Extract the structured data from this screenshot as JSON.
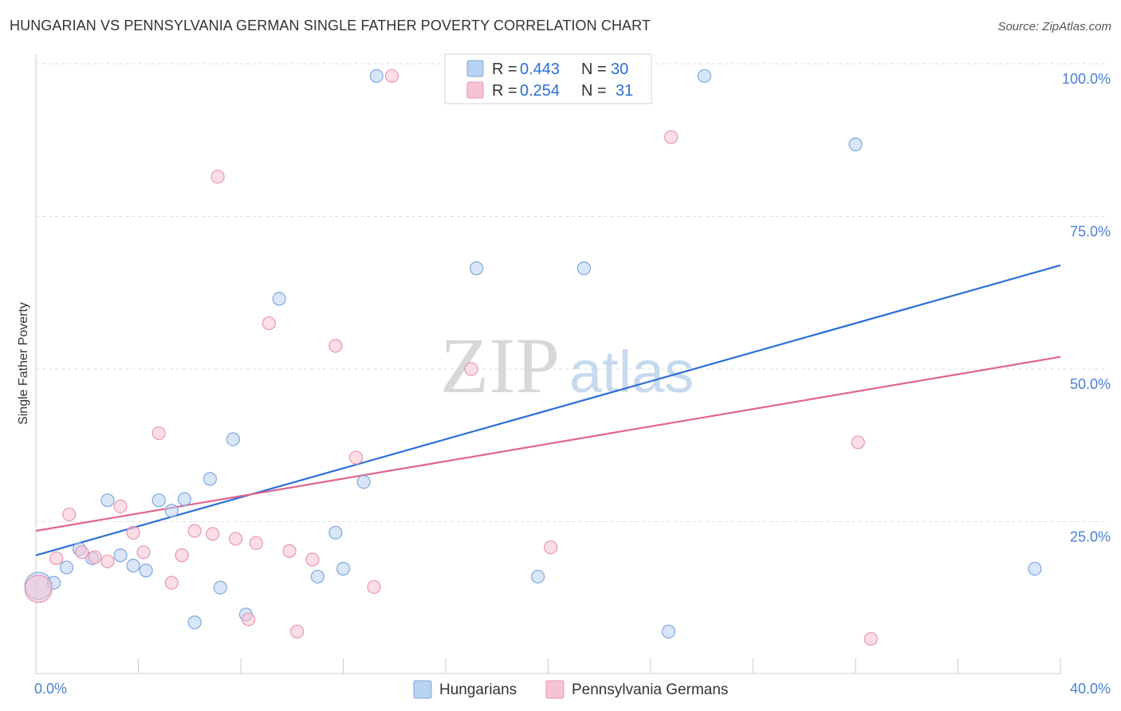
{
  "title": "HUNGARIAN VS PENNSYLVANIA GERMAN SINGLE FATHER POVERTY CORRELATION CHART",
  "source": "Source: ZipAtlas.com",
  "watermark": {
    "part1": "ZIP",
    "part2": "atlas"
  },
  "colors": {
    "blue_fill": "#b8d2f2",
    "blue_stroke": "#7fa8dc",
    "blue_line": "#2a6fd6",
    "pink_fill": "#f7c2d2",
    "pink_stroke": "#e896b0",
    "pink_line": "#e0648e",
    "grid": "#dddddd",
    "tick_label": "#4a7fd4"
  },
  "legend": {
    "r_label": "R =",
    "n_label": "N =",
    "rows": [
      {
        "r": "0.443",
        "n": "30"
      },
      {
        "r": "0.254",
        "n": "31"
      }
    ]
  },
  "chart_data": {
    "type": "scatter",
    "title": "HUNGARIAN VS PENNSYLVANIA GERMAN SINGLE FATHER POVERTY CORRELATION CHART",
    "xlabel": "",
    "ylabel": "Single Father Poverty",
    "xlim": [
      0,
      40
    ],
    "ylim": [
      0,
      100
    ],
    "x_tick_labels": [
      "0.0%",
      "40.0%"
    ],
    "y_tick_values": [
      25,
      50,
      75,
      100
    ],
    "y_tick_labels": [
      "25.0%",
      "50.0%",
      "75.0%",
      "100.0%"
    ],
    "grid": true,
    "legend_position": "top-center",
    "series": [
      {
        "name": "Hungarians",
        "r": 0.443,
        "n": 30,
        "trend": {
          "x": [
            0,
            40
          ],
          "y": [
            19.5,
            67.0
          ]
        },
        "points": [
          {
            "x": 0.1,
            "y": 14.5,
            "big": true
          },
          {
            "x": 0.7,
            "y": 15.0
          },
          {
            "x": 1.2,
            "y": 17.5
          },
          {
            "x": 1.7,
            "y": 20.5
          },
          {
            "x": 2.2,
            "y": 19.0
          },
          {
            "x": 2.8,
            "y": 28.5
          },
          {
            "x": 3.3,
            "y": 19.5
          },
          {
            "x": 3.8,
            "y": 17.8
          },
          {
            "x": 4.3,
            "y": 17.0
          },
          {
            "x": 4.8,
            "y": 28.5
          },
          {
            "x": 5.3,
            "y": 26.8
          },
          {
            "x": 5.8,
            "y": 28.7
          },
          {
            "x": 6.2,
            "y": 8.5
          },
          {
            "x": 6.8,
            "y": 32.0
          },
          {
            "x": 7.2,
            "y": 14.2
          },
          {
            "x": 7.7,
            "y": 38.5
          },
          {
            "x": 8.2,
            "y": 9.8
          },
          {
            "x": 9.5,
            "y": 61.5
          },
          {
            "x": 11.0,
            "y": 16.0
          },
          {
            "x": 11.7,
            "y": 23.2
          },
          {
            "x": 12.0,
            "y": 17.3
          },
          {
            "x": 12.8,
            "y": 31.5
          },
          {
            "x": 13.3,
            "y": 98.0
          },
          {
            "x": 17.2,
            "y": 66.5
          },
          {
            "x": 19.6,
            "y": 16.0
          },
          {
            "x": 21.4,
            "y": 66.5
          },
          {
            "x": 24.7,
            "y": 7.0
          },
          {
            "x": 26.1,
            "y": 98.0
          },
          {
            "x": 32.0,
            "y": 86.8
          },
          {
            "x": 39.0,
            "y": 17.3
          }
        ]
      },
      {
        "name": "Pennsylvania Germans",
        "r": 0.254,
        "n": 31,
        "trend": {
          "x": [
            0,
            40
          ],
          "y": [
            23.5,
            52.0
          ]
        },
        "points": [
          {
            "x": 0.1,
            "y": 14.0,
            "big": true
          },
          {
            "x": 0.8,
            "y": 19.0
          },
          {
            "x": 1.3,
            "y": 26.2
          },
          {
            "x": 1.8,
            "y": 20.0
          },
          {
            "x": 2.3,
            "y": 19.2
          },
          {
            "x": 2.8,
            "y": 18.5
          },
          {
            "x": 3.3,
            "y": 27.5
          },
          {
            "x": 3.8,
            "y": 23.2
          },
          {
            "x": 4.2,
            "y": 20.0
          },
          {
            "x": 4.8,
            "y": 39.5
          },
          {
            "x": 5.3,
            "y": 15.0
          },
          {
            "x": 5.7,
            "y": 19.5
          },
          {
            "x": 6.2,
            "y": 23.5
          },
          {
            "x": 6.9,
            "y": 23.0
          },
          {
            "x": 7.1,
            "y": 81.5
          },
          {
            "x": 7.8,
            "y": 22.2
          },
          {
            "x": 8.3,
            "y": 9.0
          },
          {
            "x": 8.6,
            "y": 21.5
          },
          {
            "x": 9.1,
            "y": 57.5
          },
          {
            "x": 9.9,
            "y": 20.2
          },
          {
            "x": 10.2,
            "y": 7.0
          },
          {
            "x": 10.8,
            "y": 18.8
          },
          {
            "x": 11.7,
            "y": 53.8
          },
          {
            "x": 12.5,
            "y": 35.5
          },
          {
            "x": 13.2,
            "y": 14.3
          },
          {
            "x": 13.9,
            "y": 98.0
          },
          {
            "x": 17.0,
            "y": 50.0
          },
          {
            "x": 20.1,
            "y": 20.8
          },
          {
            "x": 24.8,
            "y": 88.0
          },
          {
            "x": 32.1,
            "y": 38.0
          },
          {
            "x": 32.6,
            "y": 5.8
          }
        ]
      }
    ]
  }
}
